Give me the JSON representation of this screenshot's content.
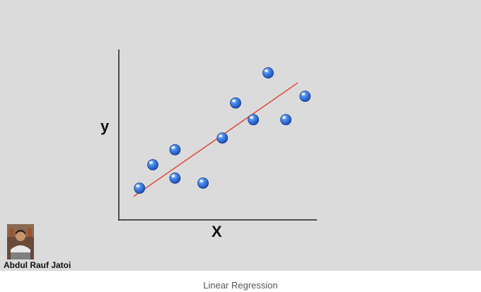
{
  "chart_data": {
    "type": "scatter",
    "xlabel": "X",
    "ylabel": "y",
    "points": [
      {
        "x": 1.0,
        "y": 1.7
      },
      {
        "x": 1.9,
        "y": 3.1
      },
      {
        "x": 3.4,
        "y": 2.3
      },
      {
        "x": 3.4,
        "y": 4.0
      },
      {
        "x": 5.3,
        "y": 2.0
      },
      {
        "x": 6.6,
        "y": 4.7
      },
      {
        "x": 7.5,
        "y": 6.8
      },
      {
        "x": 8.7,
        "y": 5.8
      },
      {
        "x": 9.7,
        "y": 8.6
      },
      {
        "x": 10.9,
        "y": 5.8
      },
      {
        "x": 12.2,
        "y": 7.2
      }
    ],
    "fit_line": {
      "x": [
        0.6,
        11.7
      ],
      "y": [
        1.2,
        8.0
      ]
    },
    "xlim": [
      -0.4,
      13.0
    ],
    "ylim": [
      -0.2,
      10.0
    ],
    "grid": false,
    "colors": {
      "points": "#3a7ad8",
      "fit_line": "#e04a3a",
      "axes": "#222222"
    }
  },
  "author": {
    "name": "Abdul Rauf Jatoi"
  },
  "caption": "Linear Regression",
  "colors": {
    "slide_background": "#dbdbdb",
    "page_background": "#ffffff"
  }
}
